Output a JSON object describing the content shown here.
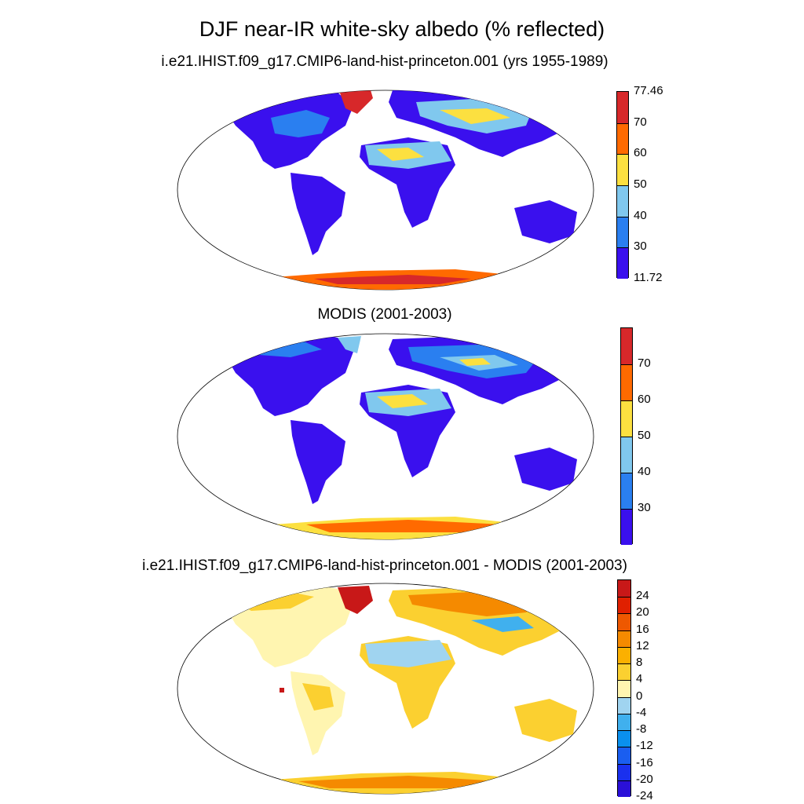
{
  "title": "DJF near-IR white-sky albedo (% reflected)",
  "panels": [
    {
      "subtitle": "i.e21.IHIST.f09_g17.CMIP6-land-hist-princeton.001 (yrs 1955-1989)",
      "colorbar": {
        "colors": [
          "#3a10ee",
          "#2a7ff0",
          "#80c8ee",
          "#fce040",
          "#ff6a00",
          "#d7282a"
        ],
        "ticks": [
          "77.46",
          "70",
          "60",
          "50",
          "40",
          "30",
          "11.72"
        ]
      }
    },
    {
      "subtitle": "MODIS (2001-2003)",
      "colorbar": {
        "colors": [
          "#3a10ee",
          "#2a7ff0",
          "#80c8ee",
          "#fce040",
          "#ff6a00",
          "#d7282a"
        ],
        "ticks": [
          "70",
          "60",
          "50",
          "40",
          "30"
        ]
      }
    },
    {
      "subtitle": "i.e21.IHIST.f09_g17.CMIP6-land-hist-princeton.001 - MODIS (2001-2003)",
      "colorbar": {
        "colors": [
          "#2a10d8",
          "#1a30ee",
          "#1a5ef0",
          "#0a90ee",
          "#40b0ee",
          "#a0d4f0",
          "#fff5b0",
          "#fbd030",
          "#fbb000",
          "#f58a00",
          "#ee5800",
          "#e02000",
          "#c81818"
        ],
        "ticks": [
          "24",
          "20",
          "16",
          "12",
          "8",
          "4",
          "0",
          "-4",
          "-8",
          "-12",
          "-16",
          "-20",
          "-24"
        ]
      }
    }
  ]
}
